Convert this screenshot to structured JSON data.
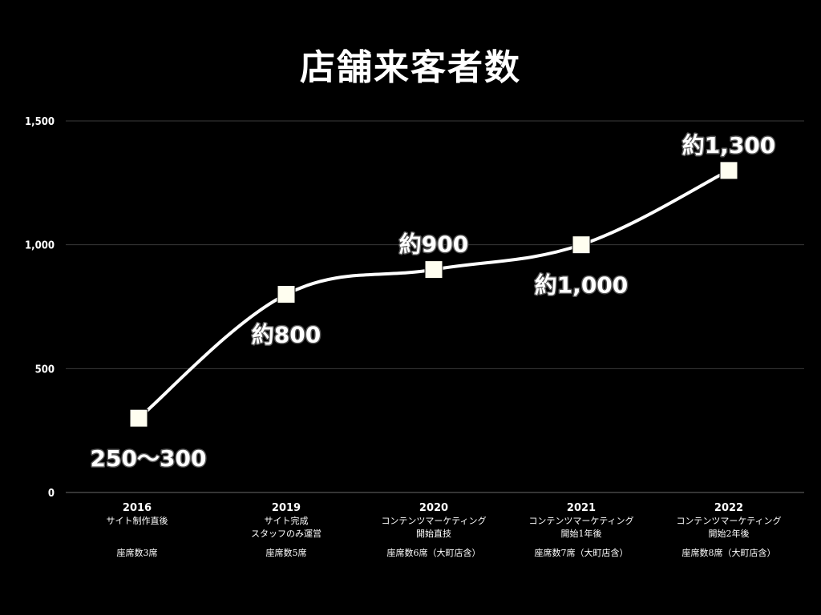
{
  "chart_data": {
    "type": "line",
    "title": "店舗来客者数",
    "xlabel": "",
    "ylabel": "",
    "ylim": [
      0,
      1500
    ],
    "yticks": [
      0,
      500,
      1000,
      1500
    ],
    "ytick_labels": [
      "0",
      "500",
      "1,000",
      "1,500"
    ],
    "grid": true,
    "legend": "none",
    "categories": [
      {
        "year": "2016",
        "desc": [
          "サイト制作直後"
        ],
        "seats": "座席数3席"
      },
      {
        "year": "2019",
        "desc": [
          "サイト完成",
          "スタッフのみ運営"
        ],
        "seats": "座席数5席"
      },
      {
        "year": "2020",
        "desc": [
          "コンテンツマーケティング",
          "開始直技"
        ],
        "seats": "座席数6席（大町店含）"
      },
      {
        "year": "2021",
        "desc": [
          "コンテンツマーケティング",
          "開始1年後"
        ],
        "seats": "座席数7席（大町店含）"
      },
      {
        "year": "2022",
        "desc": [
          "コンテンツマーケティング",
          "開始2年後"
        ],
        "seats": "座席数8席（大町店含）"
      }
    ],
    "values": [
      300,
      800,
      900,
      1000,
      1300
    ],
    "data_labels": [
      "250〜300",
      "約800",
      "約900",
      "約1,000",
      "約1,300"
    ],
    "label_positions": [
      "below",
      "below",
      "above",
      "below",
      "above"
    ],
    "colors": {
      "background": "#000000",
      "line": "#ffffff",
      "marker": "#fffef0",
      "grid": "#3a3a3a"
    }
  }
}
